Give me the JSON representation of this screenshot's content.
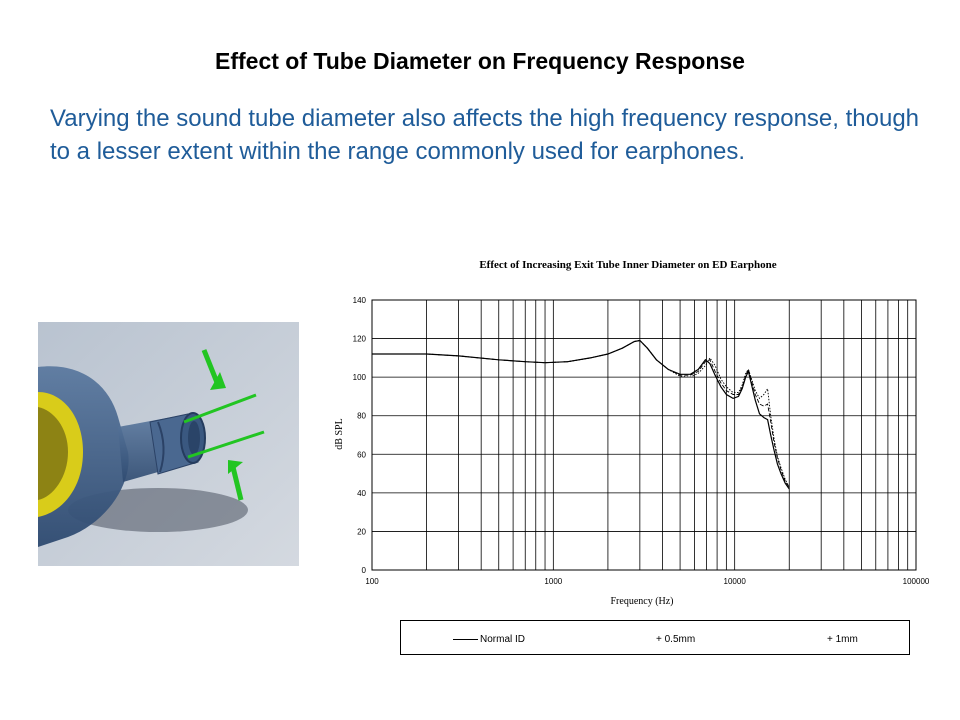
{
  "slide": {
    "title": "Effect of Tube Diameter on Frequency Response",
    "body": "Varying the sound tube diameter also affects the high frequency response, though to a lesser extent within the range commonly used for earphones."
  },
  "colors": {
    "body_text": "#1f5c99",
    "arrow_green": "#22c522",
    "shell_yellow": "#d9cc1a",
    "tube_blue": "#3f5f86"
  },
  "chart_data": {
    "type": "line",
    "title": "Effect of Increasing Exit Tube Inner Diameter on ED Earphone",
    "xlabel": "Frequency (Hz)",
    "ylabel": "dB SPL",
    "xscale": "log",
    "xlim": [
      100,
      100000
    ],
    "ylim": [
      0,
      140
    ],
    "x_ticks": [
      "100",
      "1000",
      "10000",
      "100000"
    ],
    "y_ticks": [
      "0",
      "20",
      "40",
      "60",
      "80",
      "100",
      "120",
      "140"
    ],
    "grid": true,
    "legend_position": "bottom",
    "series": [
      {
        "name": "Normal ID",
        "style": "solid",
        "x": [
          100,
          200,
          300,
          500,
          700,
          900,
          1200,
          1600,
          2000,
          2400,
          2800,
          3000,
          3300,
          3700,
          4300,
          5000,
          5700,
          6300,
          6900,
          7300,
          7800,
          8400,
          9000,
          9800,
          10500,
          11000,
          11500,
          11900,
          12400,
          13000,
          13700,
          14500,
          15200,
          15800,
          16500,
          17200,
          18000,
          19000,
          20000
        ],
        "y": [
          112,
          112,
          111,
          109,
          108,
          107.5,
          108,
          110,
          112,
          115,
          118.5,
          119,
          115,
          109,
          104,
          101.5,
          101.5,
          104,
          109,
          107,
          101,
          95,
          91,
          89,
          90,
          94,
          100,
          103,
          96,
          88,
          81,
          79,
          78,
          70,
          62,
          55,
          50,
          45,
          42
        ]
      },
      {
        "name": "+ 0.5mm",
        "style": "dashed",
        "x": [
          100,
          200,
          300,
          500,
          700,
          900,
          1200,
          1600,
          2000,
          2400,
          2800,
          3000,
          3300,
          3700,
          4300,
          5000,
          5700,
          6300,
          6900,
          7300,
          7800,
          8400,
          9000,
          9800,
          10500,
          11000,
          11500,
          11900,
          12400,
          13000,
          13700,
          14500,
          15200,
          15800,
          16500,
          17200,
          18000,
          19000,
          20000
        ],
        "y": [
          112,
          112,
          111,
          109,
          108,
          107.5,
          108,
          110,
          112,
          115,
          118.5,
          119,
          115,
          109,
          104,
          101,
          101,
          103,
          108,
          109,
          103,
          97,
          93,
          91,
          91,
          95,
          101,
          104,
          98,
          91,
          86,
          85,
          86,
          77,
          66,
          58,
          52,
          46,
          43
        ]
      },
      {
        "name": "+ 1mm",
        "style": "none",
        "x": [
          100,
          200,
          300,
          500,
          700,
          900,
          1200,
          1600,
          2000,
          2400,
          2800,
          3000,
          3300,
          3700,
          4300,
          5000,
          5700,
          6300,
          6900,
          7300,
          7800,
          8400,
          9000,
          9800,
          10500,
          11000,
          11500,
          11900,
          12400,
          13000,
          13700,
          14500,
          15200,
          15800,
          16500,
          17200,
          18000,
          19000,
          20000
        ],
        "y": [
          112,
          112,
          111,
          109,
          108,
          107.5,
          108,
          110,
          112,
          115,
          118.5,
          119,
          115,
          109,
          104,
          100.5,
          100,
          102,
          106,
          110,
          106,
          99,
          95,
          92,
          92,
          96,
          102,
          104,
          99,
          93,
          89,
          91,
          94,
          80,
          68,
          59,
          53,
          47,
          43
        ]
      }
    ]
  }
}
